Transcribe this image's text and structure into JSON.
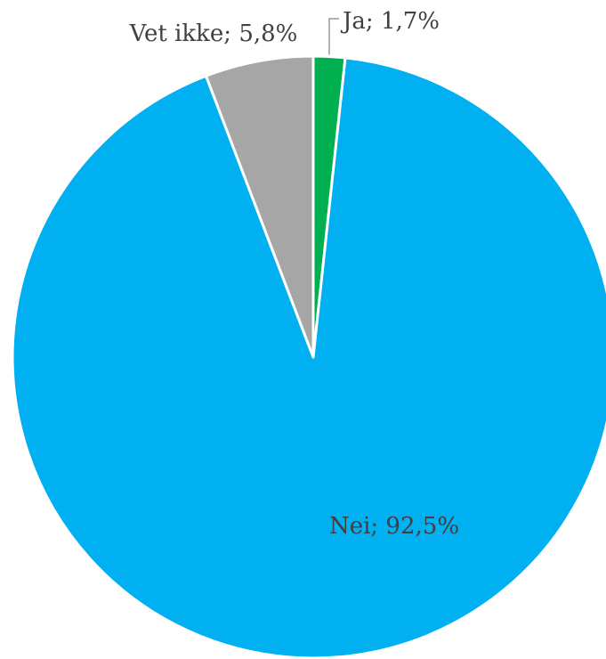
{
  "chart_data": {
    "type": "pie",
    "title": "",
    "slices": [
      {
        "label": "Ja",
        "value": 1.7,
        "display": "Ja; 1,7%",
        "color": "#00b050"
      },
      {
        "label": "Nei",
        "value": 92.5,
        "display": "Nei; 92,5%",
        "color": "#00b0f0"
      },
      {
        "label": "Vet ikke",
        "value": 5.8,
        "display": "Vet ikke; 5,8%",
        "color": "#a6a6a6"
      }
    ],
    "start_angle": "12 o'clock",
    "direction": "clockwise",
    "legend": "none",
    "label_color": "#404040"
  }
}
